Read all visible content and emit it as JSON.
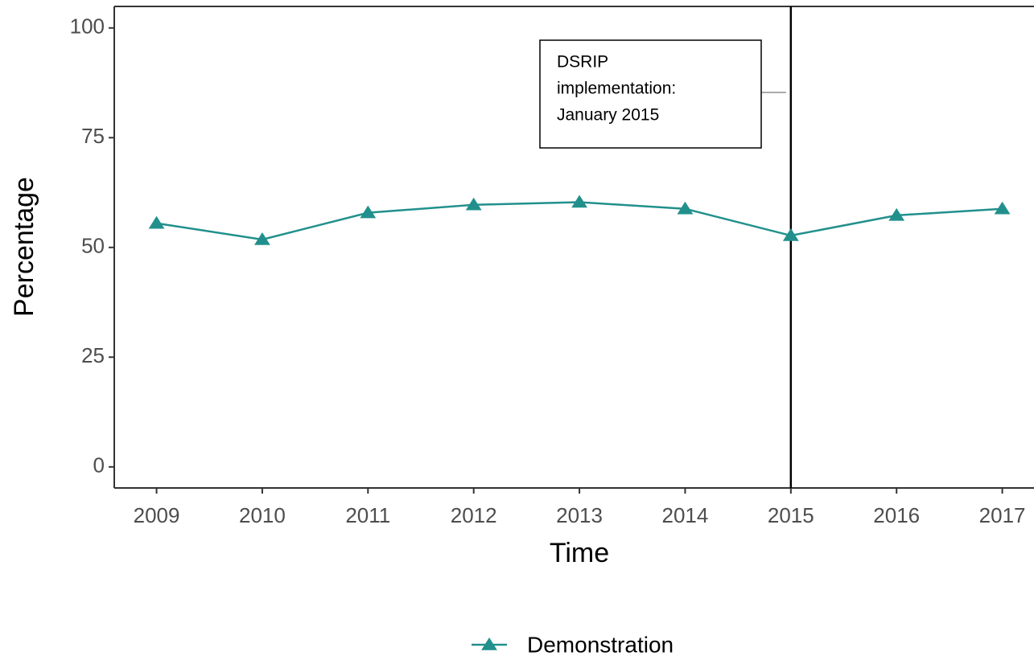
{
  "chart_data": {
    "type": "line",
    "x": [
      2009,
      2010,
      2011,
      2012,
      2013,
      2014,
      2015,
      2016,
      2017
    ],
    "series": [
      {
        "name": "Demonstration",
        "color": "#21908c",
        "marker": "triangle",
        "values": [
          55.5,
          51.8,
          57.9,
          59.7,
          60.3,
          58.8,
          52.7,
          57.3,
          58.8
        ]
      }
    ],
    "xlim": [
      2008.6,
      2017.3
    ],
    "xticks": [
      2009,
      2010,
      2011,
      2012,
      2013,
      2014,
      2015,
      2016,
      2017
    ],
    "ylim": [
      -4.8,
      104.9
    ],
    "yticks": [
      0,
      25,
      50,
      75,
      100
    ],
    "xlabel": "Time",
    "ylabel": "Percentage",
    "vline": 2015,
    "annotation": [
      "DSRIP",
      "implementation:",
      "January 2015"
    ],
    "grid": false,
    "legend": "bottom"
  }
}
